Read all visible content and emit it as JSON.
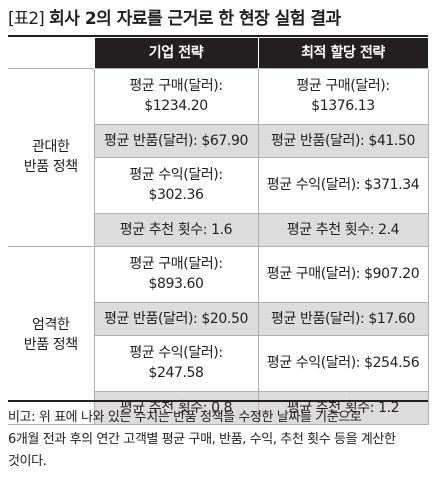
{
  "title": {
    "tag": "[표2]",
    "text": "회사 2의 자료를 근거로 한 현장 실험 결과"
  },
  "table": {
    "headers": [
      "기업 전략",
      "최적 할당 전략"
    ],
    "groups": [
      {
        "label": [
          "관대한",
          "반품 정책"
        ],
        "rows": [
          [
            "평균 구매(달러):\n$1234.20",
            "평균 구매(달러):\n$1376.13"
          ],
          [
            "평균 반품(달러): $67.90",
            "평균 반품(달러): $41.50"
          ],
          [
            "평균 수익(달러):\n$302.36",
            "평균 수익(달러): $371.34"
          ],
          [
            "평균 추천 횟수: 1.6",
            "평균 추천 횟수: 2.4"
          ]
        ]
      },
      {
        "label": [
          "엄격한",
          "반품 정책"
        ],
        "rows": [
          [
            "평균 구매(달러):\n$893.60",
            "평균 구매(달러): $907.20"
          ],
          [
            "평균 반품(달러): $20.50",
            "평균 반품(달러): $17.60"
          ],
          [
            "평균 수익(달러):\n$247.58",
            "평균 수익(달러): $254.56"
          ],
          [
            "평균 추천 횟수: 0.8",
            "평균 추천 횟수: 1.2"
          ]
        ]
      }
    ]
  },
  "note": {
    "lines": [
      "비고: 위 표에 나와 있는 수치는 반품 정책을 수정한 날짜를 기준으로",
      "6개월 전과 후의 연간 고객별 평균 구매, 반품, 수익, 추천 횟수 등을 계산한",
      "것이다."
    ]
  }
}
